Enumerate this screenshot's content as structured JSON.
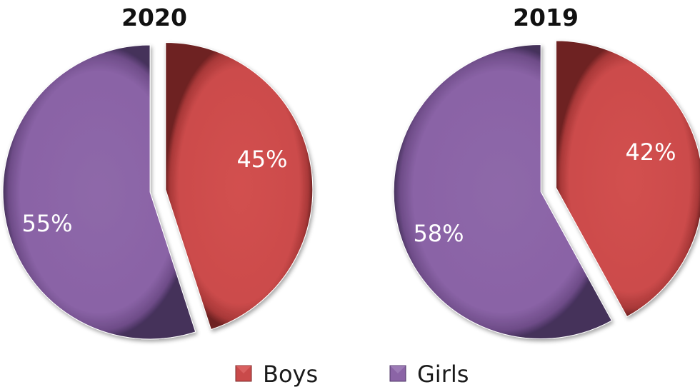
{
  "chart_data": {
    "type": "pie",
    "charts": [
      {
        "title": "2020",
        "slices": [
          {
            "label": "Boys",
            "value": 45,
            "display": "45%"
          },
          {
            "label": "Girls",
            "value": 55,
            "display": "55%"
          }
        ]
      },
      {
        "title": "2019",
        "slices": [
          {
            "label": "Boys",
            "value": 42,
            "display": "42%"
          },
          {
            "label": "Girls",
            "value": 58,
            "display": "58%"
          }
        ]
      }
    ],
    "legend": {
      "placement": "bottom",
      "entries": [
        {
          "name": "Boys",
          "color": "#c94a4a"
        },
        {
          "name": "Girls",
          "color": "#8b64a6"
        }
      ]
    },
    "exploded_slice": "Boys"
  }
}
